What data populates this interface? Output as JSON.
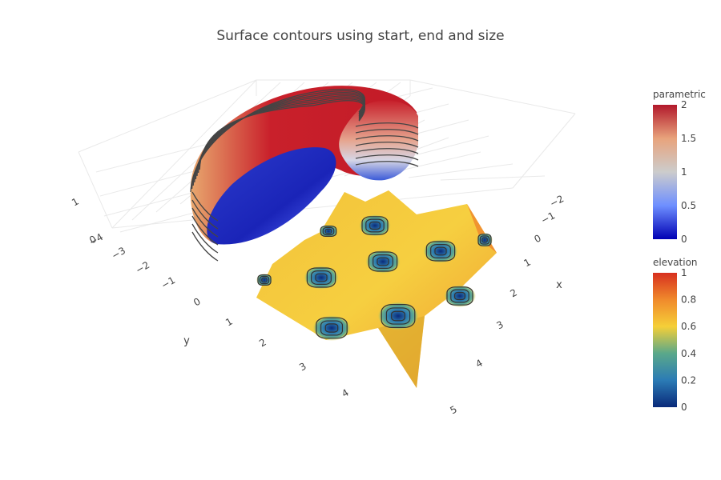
{
  "chart_data": {
    "type": "surface",
    "title": "Surface contours using start, end and size",
    "scene": {
      "axes": {
        "x": {
          "title": "x",
          "ticks": [
            "−2",
            "−1",
            "0",
            "1",
            "2",
            "3",
            "4",
            "5"
          ]
        },
        "y": {
          "title": "y",
          "ticks": [
            "−4",
            "−3",
            "−2",
            "−1",
            "0",
            "1",
            "2",
            "3",
            "4"
          ]
        },
        "z": {
          "title": "",
          "ticks": [
            "0",
            "1"
          ]
        }
      },
      "grid": true
    },
    "surfaces": [
      {
        "name": "parametric",
        "shape": "torus section",
        "colorscale": "RdBu (reversed)",
        "contours": true,
        "colorbar": {
          "title": "parametric",
          "ticks": [
            "0",
            "0.5",
            "1",
            "1.5",
            "2"
          ],
          "range": [
            0,
            2
          ]
        }
      },
      {
        "name": "elevation",
        "shape": "periodic egg-crate sheet with wells",
        "colorscale": "RdYlBu (reversed)",
        "contours": true,
        "colorbar": {
          "title": "elevation",
          "ticks": [
            "0",
            "0.2",
            "0.4",
            "0.6",
            "0.8",
            "1"
          ],
          "range": [
            0,
            1
          ]
        }
      }
    ],
    "legend": "colorbars right"
  },
  "colors": {
    "text": "#444444",
    "grid": "#e6e6e6",
    "contour_line": "#444444",
    "parametric_high": "#b2182b",
    "parametric_mid": "#cccccc",
    "parametric_low": "#0000b4",
    "elevation_high": "#d73027",
    "elevation_mid": "#fee090",
    "elevation_low": "#313695"
  }
}
